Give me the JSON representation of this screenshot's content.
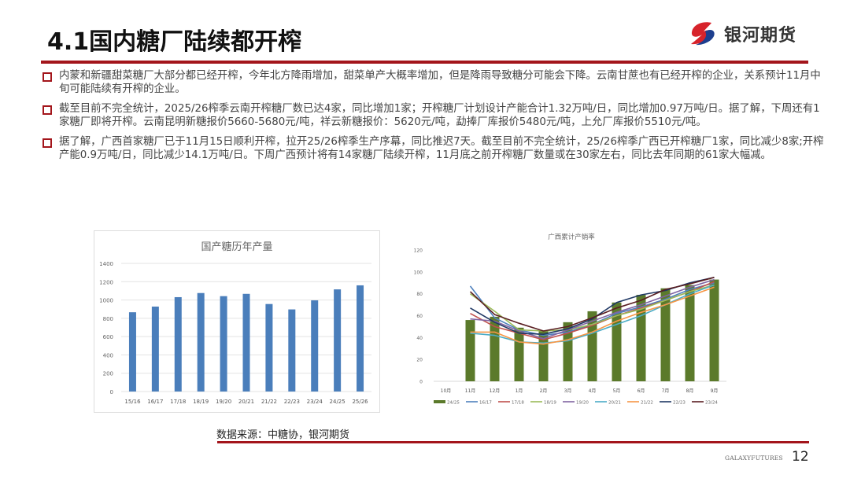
{
  "header": {
    "title": "4.1国内糖厂陆续都开榨",
    "logo_text": "银河期货",
    "logo_icon": "galaxy-futures-logo-icon"
  },
  "colors": {
    "accent_red": "#a3151b",
    "bar_blue": "#4a7ebb",
    "bar_green": "#5b7a2b"
  },
  "bullets": [
    {
      "icon": "hollow-square-bullet-icon",
      "text": "内蒙和新疆甜菜糖厂大部分都已经开榨，今年北方降雨增加，甜菜单产大概率增加，但是降雨导致糖分可能会下降。云南甘蔗也有已经开榨的企业，关系预计11月中旬可能陆续有开榨的企业。"
    },
    {
      "icon": "hollow-square-bullet-icon",
      "text": "截至目前不完全统计，2025/26榨季云南开榨糖厂数已达4家，同比增加1家；开榨糖厂计划设计产能合计1.32万吨/日，同比增加0.97万吨/日。据了解，下周还有1家糖厂即将开榨。云南昆明新糖报价5660-5680元/吨，祥云新糖报价：5620元/吨，勐捧厂库报价5480元/吨，上允厂库报价5510元/吨。"
    },
    {
      "icon": "hollow-square-bullet-icon",
      "text": "据了解，广西首家糖厂已于11月15日顺利开榨，拉开25/26榨季生产序幕，同比推迟7天。截至目前不完全统计，25/26榨季广西已开榨糖厂1家，同比减少8家;开榨产能0.9万吨/日，同比减少14.1万吨/日。下周广西预计将有14家糖厂陆续开榨，11月底之前开榨糖厂数量或在30家左右，同比去年同期的61家大幅减。"
    }
  ],
  "chart_data": [
    {
      "type": "bar",
      "title": "国产糖历年产量",
      "categories": [
        "15/16",
        "16/17",
        "17/18",
        "18/19",
        "19/20",
        "20/21",
        "21/22",
        "22/23",
        "23/24",
        "24/25",
        "25/26"
      ],
      "values": [
        866,
        928,
        1031,
        1076,
        1042,
        1067,
        956,
        897,
        996,
        1116,
        1160
      ],
      "yticks": [
        "0",
        "200",
        "400",
        "600",
        "800",
        "1000",
        "1200",
        "1400"
      ],
      "ylim": [
        0,
        1400
      ],
      "xlabel": "",
      "ylabel": "",
      "grid": true,
      "legend": null
    },
    {
      "type": "bar+line",
      "title": "广西累计产销率",
      "categories": [
        "10月",
        "11月",
        "12月",
        "1月",
        "2月",
        "3月",
        "4月",
        "5月",
        "6月",
        "7月",
        "8月",
        "9月"
      ],
      "yticks": [
        "0",
        "20",
        "40",
        "60",
        "80",
        "100",
        "120"
      ],
      "ylim": [
        0,
        120
      ],
      "grid": false,
      "legend_position": "bottom",
      "series": [
        {
          "name": "24/25",
          "kind": "bar",
          "color": "#5b7a2b",
          "values": [
            null,
            56,
            59,
            49,
            46,
            54,
            64,
            72,
            79,
            85,
            88,
            93
          ]
        },
        {
          "name": "16/17",
          "kind": "line",
          "color": "#4f81bd",
          "values": [
            null,
            87,
            58,
            47,
            42,
            45,
            52,
            62,
            68,
            75,
            84,
            90
          ]
        },
        {
          "name": "17/18",
          "kind": "line",
          "color": "#c0504d",
          "values": [
            null,
            62,
            50,
            44,
            38,
            44,
            51,
            60,
            67,
            74,
            82,
            91
          ]
        },
        {
          "name": "18/19",
          "kind": "line",
          "color": "#9bbb59",
          "values": [
            null,
            80,
            64,
            47,
            46,
            47,
            52,
            60,
            66,
            74,
            82,
            88
          ]
        },
        {
          "name": "19/20",
          "kind": "line",
          "color": "#8064a2",
          "values": [
            null,
            57,
            55,
            46,
            39,
            47,
            55,
            63,
            70,
            78,
            86,
            93
          ]
        },
        {
          "name": "20/21",
          "kind": "line",
          "color": "#4bacc6",
          "values": [
            null,
            44,
            42,
            36,
            35,
            37,
            44,
            52,
            60,
            70,
            80,
            88
          ]
        },
        {
          "name": "21/22",
          "kind": "line",
          "color": "#f79646",
          "values": [
            null,
            45,
            45,
            36,
            34,
            38,
            45,
            55,
            63,
            70,
            78,
            86
          ]
        },
        {
          "name": "22/23",
          "kind": "line",
          "color": "#1f3864",
          "values": [
            null,
            67,
            54,
            44,
            43,
            48,
            57,
            72,
            79,
            83,
            90,
            95
          ]
        },
        {
          "name": "23/24",
          "kind": "line",
          "color": "#5a1e22",
          "values": [
            null,
            82,
            61,
            53,
            46,
            50,
            58,
            67,
            74,
            84,
            89,
            95
          ]
        }
      ]
    }
  ],
  "footer": {
    "source": "数据来源：中糖协，银河期货",
    "brand": "GALAXYFUTURES",
    "page_number": "12"
  }
}
